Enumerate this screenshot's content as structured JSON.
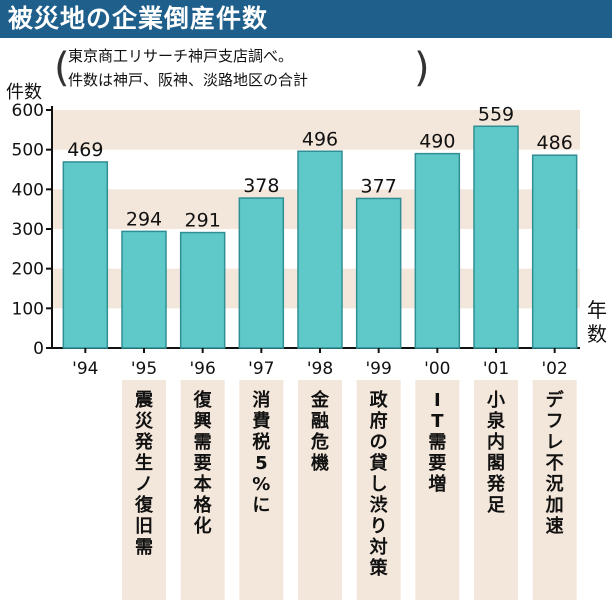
{
  "header": {
    "title": "被災地の企業倒産件数"
  },
  "source_note": {
    "line1": "東京商工リサーチ神戸支店調べ。",
    "line2": "件数は神戸、阪神、淡路地区の合計",
    "paren_open": "(",
    "paren_close": ")"
  },
  "colors": {
    "bar": "#5fc8c8",
    "bar_outline": "#2f8f94",
    "band": "#f3e6da",
    "title_bg": "#1f5f8b"
  },
  "chart_data": {
    "type": "bar",
    "ylabel": "件数",
    "xlabel": "年数",
    "ylim": [
      0,
      600
    ],
    "yticks": [
      "0",
      "100",
      "200",
      "300",
      "400",
      "500",
      "600"
    ],
    "grid": false,
    "categories": [
      "'94",
      "'95",
      "'96",
      "'97",
      "'98",
      "'99",
      "'00",
      "'01",
      "'02"
    ],
    "values": [
      469,
      294,
      291,
      378,
      496,
      377,
      490,
      559,
      486
    ],
    "value_labels": [
      "469",
      "294",
      "291",
      "378",
      "496",
      "377",
      "490",
      "559",
      "486"
    ],
    "events": [
      "",
      "震災発生ノ復旧需",
      "復興需要本格化",
      "消費税5%に",
      "金融危機",
      "政府の貸し渋り対策",
      "IT需要増",
      "小泉内閣発足",
      "デフレ不況加速"
    ]
  }
}
